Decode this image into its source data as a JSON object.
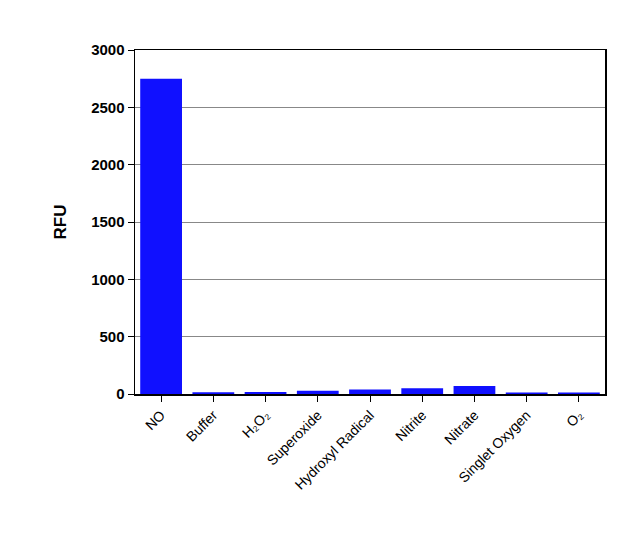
{
  "chart_data": {
    "type": "bar",
    "y_label": "RFU",
    "categories": [
      "NO",
      "Buffer",
      "H₂O₂",
      "Superoxide",
      "Hydroxyl Radical",
      "Nitrite",
      "Nitrate",
      "Singlet Oxygen",
      "O₂"
    ],
    "values": [
      2750,
      15,
      18,
      28,
      40,
      50,
      70,
      12,
      12
    ],
    "color": "#1010ff",
    "ylim": [
      0,
      3000
    ],
    "yticks": [
      0,
      500,
      1000,
      1500,
      2000,
      2500,
      3000
    ],
    "grid": true
  }
}
